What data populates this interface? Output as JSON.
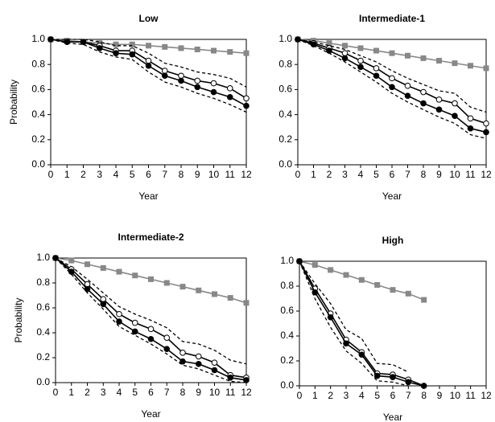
{
  "chart_data": [
    {
      "type": "line",
      "title": "Low",
      "xlabel": "Year",
      "ylabel": "Probability",
      "x": [
        0,
        1,
        2,
        3,
        4,
        5,
        6,
        7,
        8,
        9,
        10,
        11,
        12
      ],
      "xlim": [
        0,
        12
      ],
      "xticks": [
        0,
        1,
        2,
        3,
        4,
        5,
        6,
        7,
        8,
        9,
        10,
        11,
        12
      ],
      "ylim": [
        0,
        1
      ],
      "yticks": [
        {
          "value": 0,
          "label": "0.0"
        },
        {
          "value": 0.2,
          "label": "0.2"
        },
        {
          "value": 0.4,
          "label": "0.4"
        },
        {
          "value": 0.6,
          "label": "0.6"
        },
        {
          "value": 0.8,
          "label": "0.8"
        },
        {
          "value": 1,
          "label": "1.0"
        }
      ],
      "series": [
        {
          "color": "#888888",
          "marker": "square",
          "dash": false,
          "values": [
            1,
            0.99,
            0.98,
            0.97,
            0.96,
            0.96,
            0.95,
            0.94,
            0.93,
            0.92,
            0.91,
            0.9,
            0.89
          ]
        },
        {
          "color": "#000000",
          "marker": "none",
          "dash": true,
          "values": [
            1,
            1,
            1,
            0.98,
            0.95,
            0.95,
            0.89,
            0.81,
            0.78,
            0.74,
            0.72,
            0.69,
            0.62
          ]
        },
        {
          "color": "#000000",
          "marker": "none",
          "dash": true,
          "values": [
            1,
            0.97,
            0.96,
            0.9,
            0.86,
            0.84,
            0.74,
            0.66,
            0.62,
            0.57,
            0.53,
            0.48,
            0.42
          ]
        },
        {
          "color": "#000000",
          "marker": "open-circle",
          "dash": false,
          "values": [
            1,
            0.98,
            0.98,
            0.95,
            0.91,
            0.91,
            0.83,
            0.75,
            0.71,
            0.67,
            0.65,
            0.61,
            0.53
          ]
        },
        {
          "color": "#000000",
          "marker": "filled-circle",
          "dash": false,
          "values": [
            1,
            0.98,
            0.98,
            0.93,
            0.89,
            0.88,
            0.79,
            0.71,
            0.67,
            0.62,
            0.58,
            0.54,
            0.47
          ]
        }
      ]
    },
    {
      "type": "line",
      "title": "Intermediate-1",
      "xlabel": "Year",
      "x": [
        0,
        1,
        2,
        3,
        4,
        5,
        6,
        7,
        8,
        9,
        10,
        11,
        12
      ],
      "xlim": [
        0,
        12
      ],
      "xticks": [
        0,
        1,
        2,
        3,
        4,
        5,
        6,
        7,
        8,
        9,
        10,
        11,
        12
      ],
      "ylim": [
        0,
        1
      ],
      "yticks": [
        {
          "value": 0,
          "label": "0.0"
        },
        {
          "value": 0.2,
          "label": "0.2"
        },
        {
          "value": 0.4,
          "label": "0.4"
        },
        {
          "value": 0.6,
          "label": "0.6"
        },
        {
          "value": 0.8,
          "label": "0.8"
        },
        {
          "value": 1,
          "label": "1.0"
        }
      ],
      "series": [
        {
          "color": "#888888",
          "marker": "square",
          "dash": false,
          "values": [
            1,
            0.99,
            0.97,
            0.95,
            0.93,
            0.91,
            0.89,
            0.87,
            0.85,
            0.83,
            0.81,
            0.79,
            0.77
          ]
        },
        {
          "color": "#000000",
          "marker": "none",
          "dash": true,
          "values": [
            1,
            0.98,
            0.95,
            0.92,
            0.87,
            0.82,
            0.75,
            0.69,
            0.64,
            0.59,
            0.57,
            0.46,
            0.42
          ]
        },
        {
          "color": "#000000",
          "marker": "none",
          "dash": true,
          "values": [
            1,
            0.95,
            0.89,
            0.82,
            0.74,
            0.66,
            0.57,
            0.5,
            0.44,
            0.38,
            0.33,
            0.24,
            0.21
          ]
        },
        {
          "color": "#000000",
          "marker": "open-circle",
          "dash": false,
          "values": [
            1,
            0.97,
            0.93,
            0.89,
            0.83,
            0.77,
            0.69,
            0.63,
            0.58,
            0.52,
            0.49,
            0.37,
            0.33
          ]
        },
        {
          "color": "#000000",
          "marker": "filled-circle",
          "dash": false,
          "values": [
            1,
            0.96,
            0.91,
            0.85,
            0.78,
            0.71,
            0.62,
            0.55,
            0.49,
            0.44,
            0.39,
            0.29,
            0.26
          ]
        }
      ]
    },
    {
      "type": "line",
      "title": "Intermediate-2",
      "xlabel": "Year",
      "ylabel": "Probability",
      "x": [
        0,
        1,
        2,
        3,
        4,
        5,
        6,
        7,
        8,
        9,
        10,
        11,
        12
      ],
      "xlim": [
        0,
        12
      ],
      "xticks": [
        0,
        1,
        2,
        3,
        4,
        5,
        6,
        7,
        8,
        9,
        10,
        11,
        12
      ],
      "ylim": [
        0,
        1
      ],
      "yticks": [
        {
          "value": 0,
          "label": "0.0"
        },
        {
          "value": 0.2,
          "label": "0.2"
        },
        {
          "value": 0.4,
          "label": "0.4"
        },
        {
          "value": 0.6,
          "label": "0.6"
        },
        {
          "value": 0.8,
          "label": "0.8"
        },
        {
          "value": 1,
          "label": "1.0"
        }
      ],
      "series": [
        {
          "color": "#888888",
          "marker": "square",
          "dash": false,
          "values": [
            1,
            0.98,
            0.95,
            0.92,
            0.89,
            0.86,
            0.83,
            0.8,
            0.77,
            0.74,
            0.71,
            0.68,
            0.64
          ]
        },
        {
          "color": "#000000",
          "marker": "none",
          "dash": true,
          "values": [
            1,
            0.93,
            0.83,
            0.72,
            0.61,
            0.55,
            0.5,
            0.44,
            0.33,
            0.31,
            0.26,
            0.18,
            0.15
          ]
        },
        {
          "color": "#000000",
          "marker": "none",
          "dash": true,
          "values": [
            1,
            0.87,
            0.72,
            0.59,
            0.45,
            0.38,
            0.31,
            0.23,
            0.14,
            0.11,
            0.06,
            0.01,
            0
          ]
        },
        {
          "color": "#000000",
          "marker": "open-circle",
          "dash": false,
          "values": [
            1,
            0.91,
            0.79,
            0.67,
            0.55,
            0.48,
            0.43,
            0.36,
            0.24,
            0.21,
            0.16,
            0.06,
            0.04
          ]
        },
        {
          "color": "#000000",
          "marker": "filled-circle",
          "dash": false,
          "values": [
            1,
            0.89,
            0.75,
            0.63,
            0.49,
            0.41,
            0.35,
            0.27,
            0.17,
            0.15,
            0.1,
            0.04,
            0.02
          ]
        }
      ]
    },
    {
      "type": "line",
      "title": "High",
      "xlabel": "Year",
      "x": [
        0,
        1,
        2,
        3,
        4,
        5,
        6,
        7,
        8
      ],
      "xlim": [
        0,
        12
      ],
      "xticks": [
        0,
        1,
        2,
        3,
        4,
        5,
        6,
        7,
        8,
        9,
        10,
        11,
        12
      ],
      "ylim": [
        0,
        1
      ],
      "yticks": [
        {
          "value": 0,
          "label": "0.0"
        },
        {
          "value": 0.2,
          "label": "0.2"
        },
        {
          "value": 0.4,
          "label": "0.4"
        },
        {
          "value": 0.6,
          "label": "0.6"
        },
        {
          "value": 0.8,
          "label": "0.8"
        },
        {
          "value": 1,
          "label": "1.0"
        }
      ],
      "series": [
        {
          "color": "#888888",
          "marker": "square",
          "dash": false,
          "values": [
            1,
            0.97,
            0.93,
            0.89,
            0.85,
            0.81,
            0.77,
            0.74,
            0.69
          ]
        },
        {
          "color": "#000000",
          "marker": "none",
          "dash": true,
          "values": [
            1,
            0.82,
            0.66,
            0.45,
            0.38,
            0.18,
            0.17,
            0.11,
            null
          ]
        },
        {
          "color": "#000000",
          "marker": "none",
          "dash": true,
          "values": [
            1,
            0.7,
            0.47,
            0.28,
            0.18,
            0.04,
            0.03,
            0,
            null
          ]
        },
        {
          "color": "#000000",
          "marker": "open-circle",
          "dash": false,
          "values": [
            1,
            0.78,
            0.58,
            0.37,
            0.27,
            0.1,
            0.09,
            0.05,
            0
          ]
        },
        {
          "color": "#000000",
          "marker": "filled-circle",
          "dash": false,
          "values": [
            1,
            0.75,
            0.55,
            0.34,
            0.25,
            0.08,
            0.07,
            0.03,
            0
          ]
        }
      ]
    }
  ]
}
